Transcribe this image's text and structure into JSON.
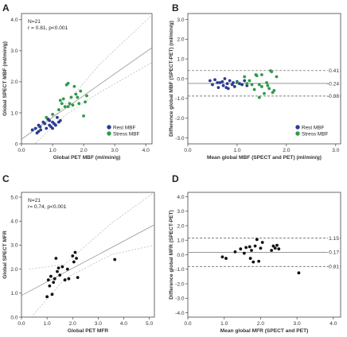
{
  "chart_data": [
    {
      "id": "A",
      "type": "scatter",
      "panel_label": "A",
      "xlabel": "Global PET MBF (ml/min/g)",
      "ylabel": "Global SPECT MBF (ml/min/g)",
      "xlim": [
        0,
        4.2
      ],
      "ylim": [
        0,
        4.2
      ],
      "xticks": [
        0,
        1,
        2,
        3,
        4
      ],
      "xtick_labels": [
        "0.0",
        "1.0",
        "2.0",
        "3.0",
        "4.0"
      ],
      "yticks": [
        0,
        1,
        2,
        3,
        4
      ],
      "ytick_labels": [
        "0",
        "1.0",
        "2.0",
        "3.0",
        "4.0"
      ],
      "annotations": [
        "N=21",
        "r = 0.81, p<0.001"
      ],
      "legend_position": "bottom-right",
      "regression": {
        "x": [
          0,
          4.2
        ],
        "y": [
          0.15,
          3.1
        ]
      },
      "ci_upper": [
        [
          0.3,
          0.38
        ],
        [
          1.2,
          1.02
        ],
        [
          2.5,
          2.55
        ],
        [
          4.2,
          4.15
        ]
      ],
      "ci_lower": [
        [
          0.3,
          -0.12
        ],
        [
          1.4,
          0.92
        ],
        [
          2.5,
          1.65
        ],
        [
          4.2,
          2.62
        ]
      ],
      "grid": false,
      "series": [
        {
          "name": "Rest MBF",
          "color": "#2b3d8f",
          "x": [
            0.35,
            0.45,
            0.5,
            0.55,
            0.6,
            0.62,
            0.7,
            0.75,
            0.8,
            0.85,
            0.9,
            0.95,
            1.0,
            1.0,
            1.05,
            1.1,
            1.15,
            1.2,
            1.25,
            0.55,
            0.9
          ],
          "y": [
            0.45,
            0.5,
            0.35,
            0.6,
            0.55,
            0.45,
            0.7,
            0.65,
            0.5,
            0.8,
            0.6,
            0.55,
            0.7,
            0.5,
            0.65,
            0.6,
            0.85,
            0.7,
            0.75,
            0.4,
            0.75
          ]
        },
        {
          "name": "Stress MBF",
          "color": "#2e9a4a",
          "x": [
            0.8,
            1.0,
            1.2,
            1.25,
            1.3,
            1.35,
            1.4,
            1.45,
            1.5,
            1.55,
            1.6,
            1.65,
            1.7,
            1.75,
            1.8,
            1.85,
            1.9,
            2.0,
            2.05,
            2.1,
            1.5
          ],
          "y": [
            0.85,
            0.95,
            1.1,
            1.4,
            1.3,
            1.45,
            1.2,
            1.9,
            1.95,
            1.3,
            1.5,
            1.25,
            1.85,
            1.6,
            1.5,
            1.3,
            1.7,
            0.9,
            1.35,
            1.55,
            1.2
          ]
        }
      ]
    },
    {
      "id": "B",
      "type": "scatter",
      "panel_label": "B",
      "xlabel": "Mean global MBF (SPECT and PET) (ml/min/g)",
      "ylabel": "Difference global MBF (SPECT-PET) (ml/min/g)",
      "xlim": [
        0,
        3.1
      ],
      "ylim": [
        -3.3,
        3.3
      ],
      "xticks": [
        0,
        1,
        2,
        3
      ],
      "xtick_labels": [
        "0.0",
        "1.0",
        "2.0",
        "3.0"
      ],
      "yticks": [
        -3,
        -2,
        -1,
        0,
        1,
        2,
        3
      ],
      "ytick_labels": [
        "-3.0",
        "-2.0",
        "-1.0",
        "0.0",
        "1.0",
        "2.0",
        "3.0"
      ],
      "reference_lines": [
        {
          "y": 0.41,
          "label": "0.41",
          "style": "dashed"
        },
        {
          "y": -0.24,
          "label": "-0.24",
          "style": "solid"
        },
        {
          "y": -0.88,
          "label": "-0.88",
          "style": "dashed"
        }
      ],
      "legend_position": "bottom-right",
      "grid": false,
      "series": [
        {
          "name": "Rest MBF",
          "color": "#2b3d8f",
          "x": [
            0.45,
            0.5,
            0.55,
            0.6,
            0.62,
            0.7,
            0.72,
            0.75,
            0.8,
            0.82,
            0.85,
            0.9,
            0.92,
            0.95,
            1.0,
            1.05,
            1.1,
            1.15,
            1.2,
            0.65,
            0.78
          ],
          "y": [
            -0.1,
            -0.3,
            -0.05,
            -0.2,
            -0.45,
            -0.15,
            -0.35,
            0.0,
            -0.25,
            -0.5,
            -0.1,
            -0.3,
            -0.2,
            -0.4,
            -0.15,
            -0.25,
            -0.3,
            -0.1,
            -0.35,
            -0.2,
            -0.45
          ]
        },
        {
          "name": "Stress MBF",
          "color": "#2e9a4a",
          "x": [
            1.0,
            1.15,
            1.25,
            1.3,
            1.35,
            1.4,
            1.45,
            1.5,
            1.55,
            1.6,
            1.65,
            1.7,
            1.75,
            1.8,
            1.2,
            1.45,
            1.62,
            1.68,
            1.72,
            1.5,
            1.38
          ],
          "y": [
            -0.2,
            0.1,
            -0.1,
            -0.3,
            -0.55,
            0.15,
            -0.3,
            0.2,
            -0.75,
            -0.2,
            -0.5,
            0.35,
            -0.6,
            0.1,
            -0.25,
            -0.95,
            -0.35,
            0.4,
            -0.7,
            -0.4,
            0.2
          ]
        }
      ]
    },
    {
      "id": "C",
      "type": "scatter",
      "panel_label": "C",
      "xlabel": "Global PET MFR",
      "ylabel": "Global SPECT MFR",
      "xlim": [
        0,
        5.2
      ],
      "ylim": [
        0,
        5.2
      ],
      "xticks": [
        0,
        1,
        2,
        3,
        4,
        5
      ],
      "xtick_labels": [
        "0.0",
        "1.0",
        "2.0",
        "3.0",
        "4.0",
        "5.0"
      ],
      "yticks": [
        0,
        1,
        2,
        3,
        4,
        5
      ],
      "ytick_labels": [
        "0.0",
        "1.0",
        "2.0",
        "3.0",
        "4.0",
        "5.0"
      ],
      "annotations": [
        "N=21",
        "r= 0.74, p<0.001"
      ],
      "regression": {
        "x": [
          0,
          5.2
        ],
        "y": [
          0.9,
          3.85
        ]
      },
      "ci_upper": [
        [
          0.3,
          2.0
        ],
        [
          1.7,
          2.2
        ],
        [
          3.5,
          3.9
        ],
        [
          5.2,
          5.2
        ]
      ],
      "ci_lower": [
        [
          0.3,
          -0.1
        ],
        [
          1.7,
          1.6
        ],
        [
          3.5,
          2.6
        ],
        [
          5.2,
          3.0
        ]
      ],
      "grid": false,
      "series": [
        {
          "name": "",
          "color": "#111111",
          "x": [
            1.0,
            1.05,
            1.1,
            1.15,
            1.2,
            1.25,
            1.3,
            1.35,
            1.4,
            1.45,
            1.5,
            1.6,
            1.7,
            1.8,
            1.85,
            2.0,
            2.05,
            2.1,
            2.15,
            2.2,
            3.65
          ],
          "y": [
            0.85,
            1.55,
            1.3,
            1.7,
            0.95,
            1.45,
            1.6,
            2.45,
            1.9,
            2.05,
            1.75,
            2.1,
            1.55,
            2.0,
            1.6,
            2.55,
            2.3,
            2.7,
            2.45,
            1.65,
            2.4
          ]
        }
      ]
    },
    {
      "id": "D",
      "type": "scatter",
      "panel_label": "D",
      "xlabel": "Mean global MFR (SPECT and PET)",
      "ylabel": "Difference global MFR (SPECT-PET)",
      "xlim": [
        0,
        4.2
      ],
      "ylim": [
        -4.3,
        4.3
      ],
      "xticks": [
        0,
        1,
        2,
        3,
        4
      ],
      "xtick_labels": [
        "0.0",
        "1.0",
        "2.0",
        "3.0",
        "4.0"
      ],
      "yticks": [
        -4,
        -3,
        -2,
        -1,
        0,
        1,
        2,
        3,
        4
      ],
      "ytick_labels": [
        "-4.0",
        "-3.0",
        "-2.0",
        "-1.0",
        "0.0",
        "1.0",
        "2.0",
        "3.0",
        "4.0"
      ],
      "reference_lines": [
        {
          "y": 1.15,
          "label": "1.15",
          "style": "dashed"
        },
        {
          "y": 0.17,
          "label": "0.17",
          "style": "solid"
        },
        {
          "y": -0.81,
          "label": "-0.81",
          "style": "dashed"
        }
      ],
      "grid": false,
      "series": [
        {
          "name": "",
          "color": "#111111",
          "x": [
            0.95,
            1.05,
            1.3,
            1.45,
            1.55,
            1.6,
            1.7,
            1.72,
            1.75,
            1.8,
            1.85,
            1.9,
            1.95,
            2.0,
            2.05,
            2.3,
            2.35,
            2.4,
            2.45,
            2.5,
            3.05
          ],
          "y": [
            -0.15,
            -0.25,
            0.2,
            0.4,
            0.1,
            0.5,
            0.55,
            -0.25,
            0.3,
            -0.5,
            0.6,
            1.05,
            -0.45,
            0.45,
            0.85,
            0.3,
            0.6,
            0.45,
            0.65,
            0.4,
            -1.25
          ]
        }
      ]
    }
  ]
}
